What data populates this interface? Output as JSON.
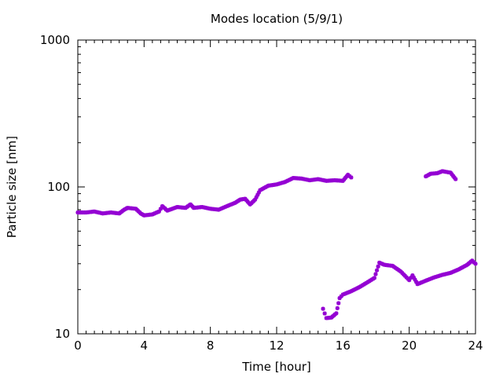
{
  "chart_data": {
    "type": "scatter",
    "title": "Modes location (5/9/1)",
    "xlabel": "Time [hour]",
    "ylabel": "Particle size [nm]",
    "xlim": [
      0,
      24
    ],
    "ylim": [
      10,
      1000
    ],
    "yscale": "log",
    "xticks": [
      0,
      4,
      8,
      12,
      16,
      20,
      24
    ],
    "yticks": [
      10,
      100,
      1000
    ],
    "ytick_labels": [
      "10",
      "100",
      "1000"
    ],
    "grid": false,
    "legend": "none",
    "marker_color": "#9400d3",
    "series": [
      {
        "mode": "upper",
        "x": [
          0,
          0.5,
          1,
          1.5,
          2,
          2.5,
          2.8,
          3,
          3.5,
          3.8,
          4,
          4.5,
          4.9,
          5.1,
          5.4,
          6,
          6.5,
          6.8,
          7,
          7.5,
          8,
          8.5,
          9,
          9.5,
          9.8,
          10.1,
          10.4,
          10.7,
          11,
          11.5,
          12,
          12.5,
          13,
          13.5,
          14,
          14.5,
          15,
          15.5,
          16,
          16.3,
          16.5
        ],
        "y": [
          67,
          67,
          68,
          66,
          67,
          66,
          70,
          72,
          71,
          66,
          64,
          65,
          68,
          74,
          69,
          73,
          72,
          76,
          72,
          73,
          71,
          70,
          74,
          78,
          82,
          83,
          76,
          82,
          95,
          102,
          104,
          108,
          115,
          114,
          111,
          113,
          110,
          111,
          110,
          121,
          116
        ]
      },
      {
        "mode": "upper-late",
        "x": [
          21,
          21.3,
          21.7,
          22,
          22.5,
          22.8
        ],
        "y": [
          118,
          123,
          124,
          128,
          125,
          113
        ]
      },
      {
        "mode": "lower",
        "x": [
          14.8,
          15,
          15.3,
          15.6,
          15.8,
          16,
          16.5,
          17,
          17.5,
          17.9,
          18.2,
          18.5,
          19,
          19.5,
          20,
          20.2,
          20.5,
          20.8,
          21,
          21.5,
          22,
          22.5,
          23,
          23.5,
          23.8,
          24
        ],
        "y": [
          14.8,
          12.8,
          12.9,
          13.8,
          17.5,
          18.5,
          19.5,
          20.8,
          22.5,
          24,
          30.5,
          29.5,
          29,
          26.5,
          23.2,
          25,
          21.8,
          22.5,
          23,
          24.2,
          25.2,
          26,
          27.5,
          29.5,
          31.5,
          30
        ]
      }
    ]
  }
}
